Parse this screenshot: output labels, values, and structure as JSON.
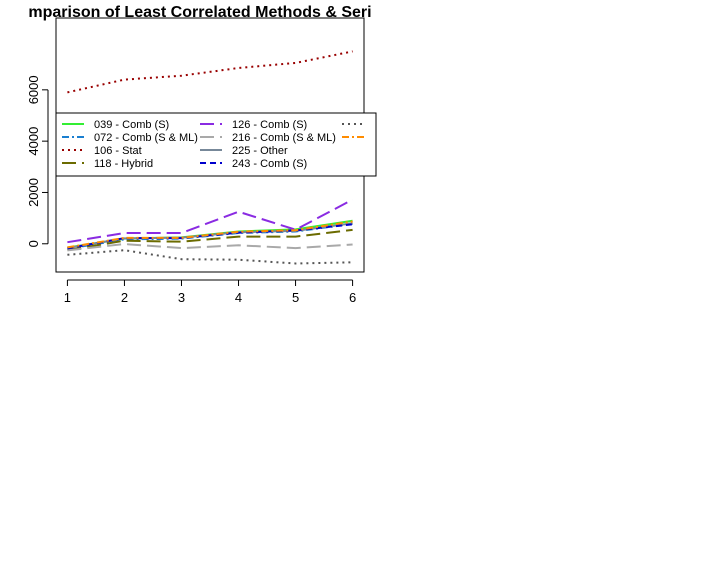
{
  "chart_data": {
    "type": "line",
    "title": "mparison of Least Correlated Methods & Seri",
    "xlabel": "",
    "ylabel": "",
    "x": [
      1,
      2,
      3,
      4,
      5,
      6
    ],
    "xticks": [
      "1",
      "2",
      "3",
      "4",
      "5",
      "6"
    ],
    "yticks": [
      "0",
      "2000",
      "4000",
      "6000"
    ],
    "ylim": [
      -1100,
      8800
    ],
    "grid": false,
    "legend_position": "middle",
    "series": [
      {
        "name": "039 - Comb (S)",
        "color": "#33ee33",
        "dash": "solid",
        "width": 2,
        "values": [
          -150,
          200,
          250,
          480,
          560,
          900
        ]
      },
      {
        "name": "072 - Comb (S & ML)",
        "color": "#1a7fd0",
        "dash": "dashdot",
        "width": 2,
        "values": [
          -200,
          170,
          200,
          420,
          480,
          780
        ]
      },
      {
        "name": "106 - Stat",
        "color": "#990000",
        "dash": "dotted",
        "width": 2,
        "values": [
          5900,
          6400,
          6550,
          6850,
          7050,
          7500
        ]
      },
      {
        "name": "118 - Hybrid",
        "color": "#6b6b00",
        "dash": "longdash",
        "width": 2,
        "values": [
          -250,
          120,
          80,
          280,
          280,
          540
        ]
      },
      {
        "name": "126 - Comb (S)",
        "color": "#8a2be2",
        "dash": "longdash",
        "width": 2,
        "values": [
          60,
          420,
          420,
          1250,
          550,
          1720
        ]
      },
      {
        "name": "216 - Comb (S & ML)",
        "color": "#a9a9a9",
        "dash": "longdash",
        "width": 2,
        "values": [
          -260,
          -10,
          -170,
          -60,
          -170,
          -30
        ]
      },
      {
        "name": "225 - Other",
        "color": "#778899",
        "dash": "solid",
        "width": 2,
        "values": [
          -170,
          210,
          240,
          450,
          500,
          800
        ]
      },
      {
        "name": "243 - Comb (S)",
        "color": "#0000cd",
        "dash": "dashed",
        "width": 2,
        "values": [
          -180,
          220,
          220,
          430,
          520,
          760
        ]
      },
      {
        "name": "",
        "color": "#555555",
        "dash": "dotted",
        "width": 2,
        "values": [
          -430,
          -250,
          -600,
          -620,
          -770,
          -720
        ]
      },
      {
        "name": "",
        "color": "#ff8c00",
        "dash": "dashdot",
        "width": 2,
        "values": [
          -140,
          230,
          230,
          470,
          530,
          870
        ]
      }
    ],
    "legend": {
      "entries": [
        {
          "name": "039 - Comb (S)",
          "color": "#33ee33",
          "dash": "solid"
        },
        {
          "name": "072 - Comb (S & ML)",
          "color": "#1a7fd0",
          "dash": "dashdot"
        },
        {
          "name": "106 - Stat",
          "color": "#990000",
          "dash": "dotted"
        },
        {
          "name": "118 - Hybrid",
          "color": "#6b6b00",
          "dash": "longdash"
        },
        {
          "name": "126 - Comb (S)",
          "color": "#8a2be2",
          "dash": "longdash"
        },
        {
          "name": "216 - Comb (S & ML)",
          "color": "#a9a9a9",
          "dash": "longdash"
        },
        {
          "name": "225 - Other",
          "color": "#778899",
          "dash": "solid"
        },
        {
          "name": "243 - Comb (S)",
          "color": "#0000cd",
          "dash": "dashed"
        },
        {
          "name": "",
          "color": "#555555",
          "dash": "dotted"
        },
        {
          "name": "",
          "color": "#ff8c00",
          "dash": "dashdot"
        }
      ]
    }
  }
}
